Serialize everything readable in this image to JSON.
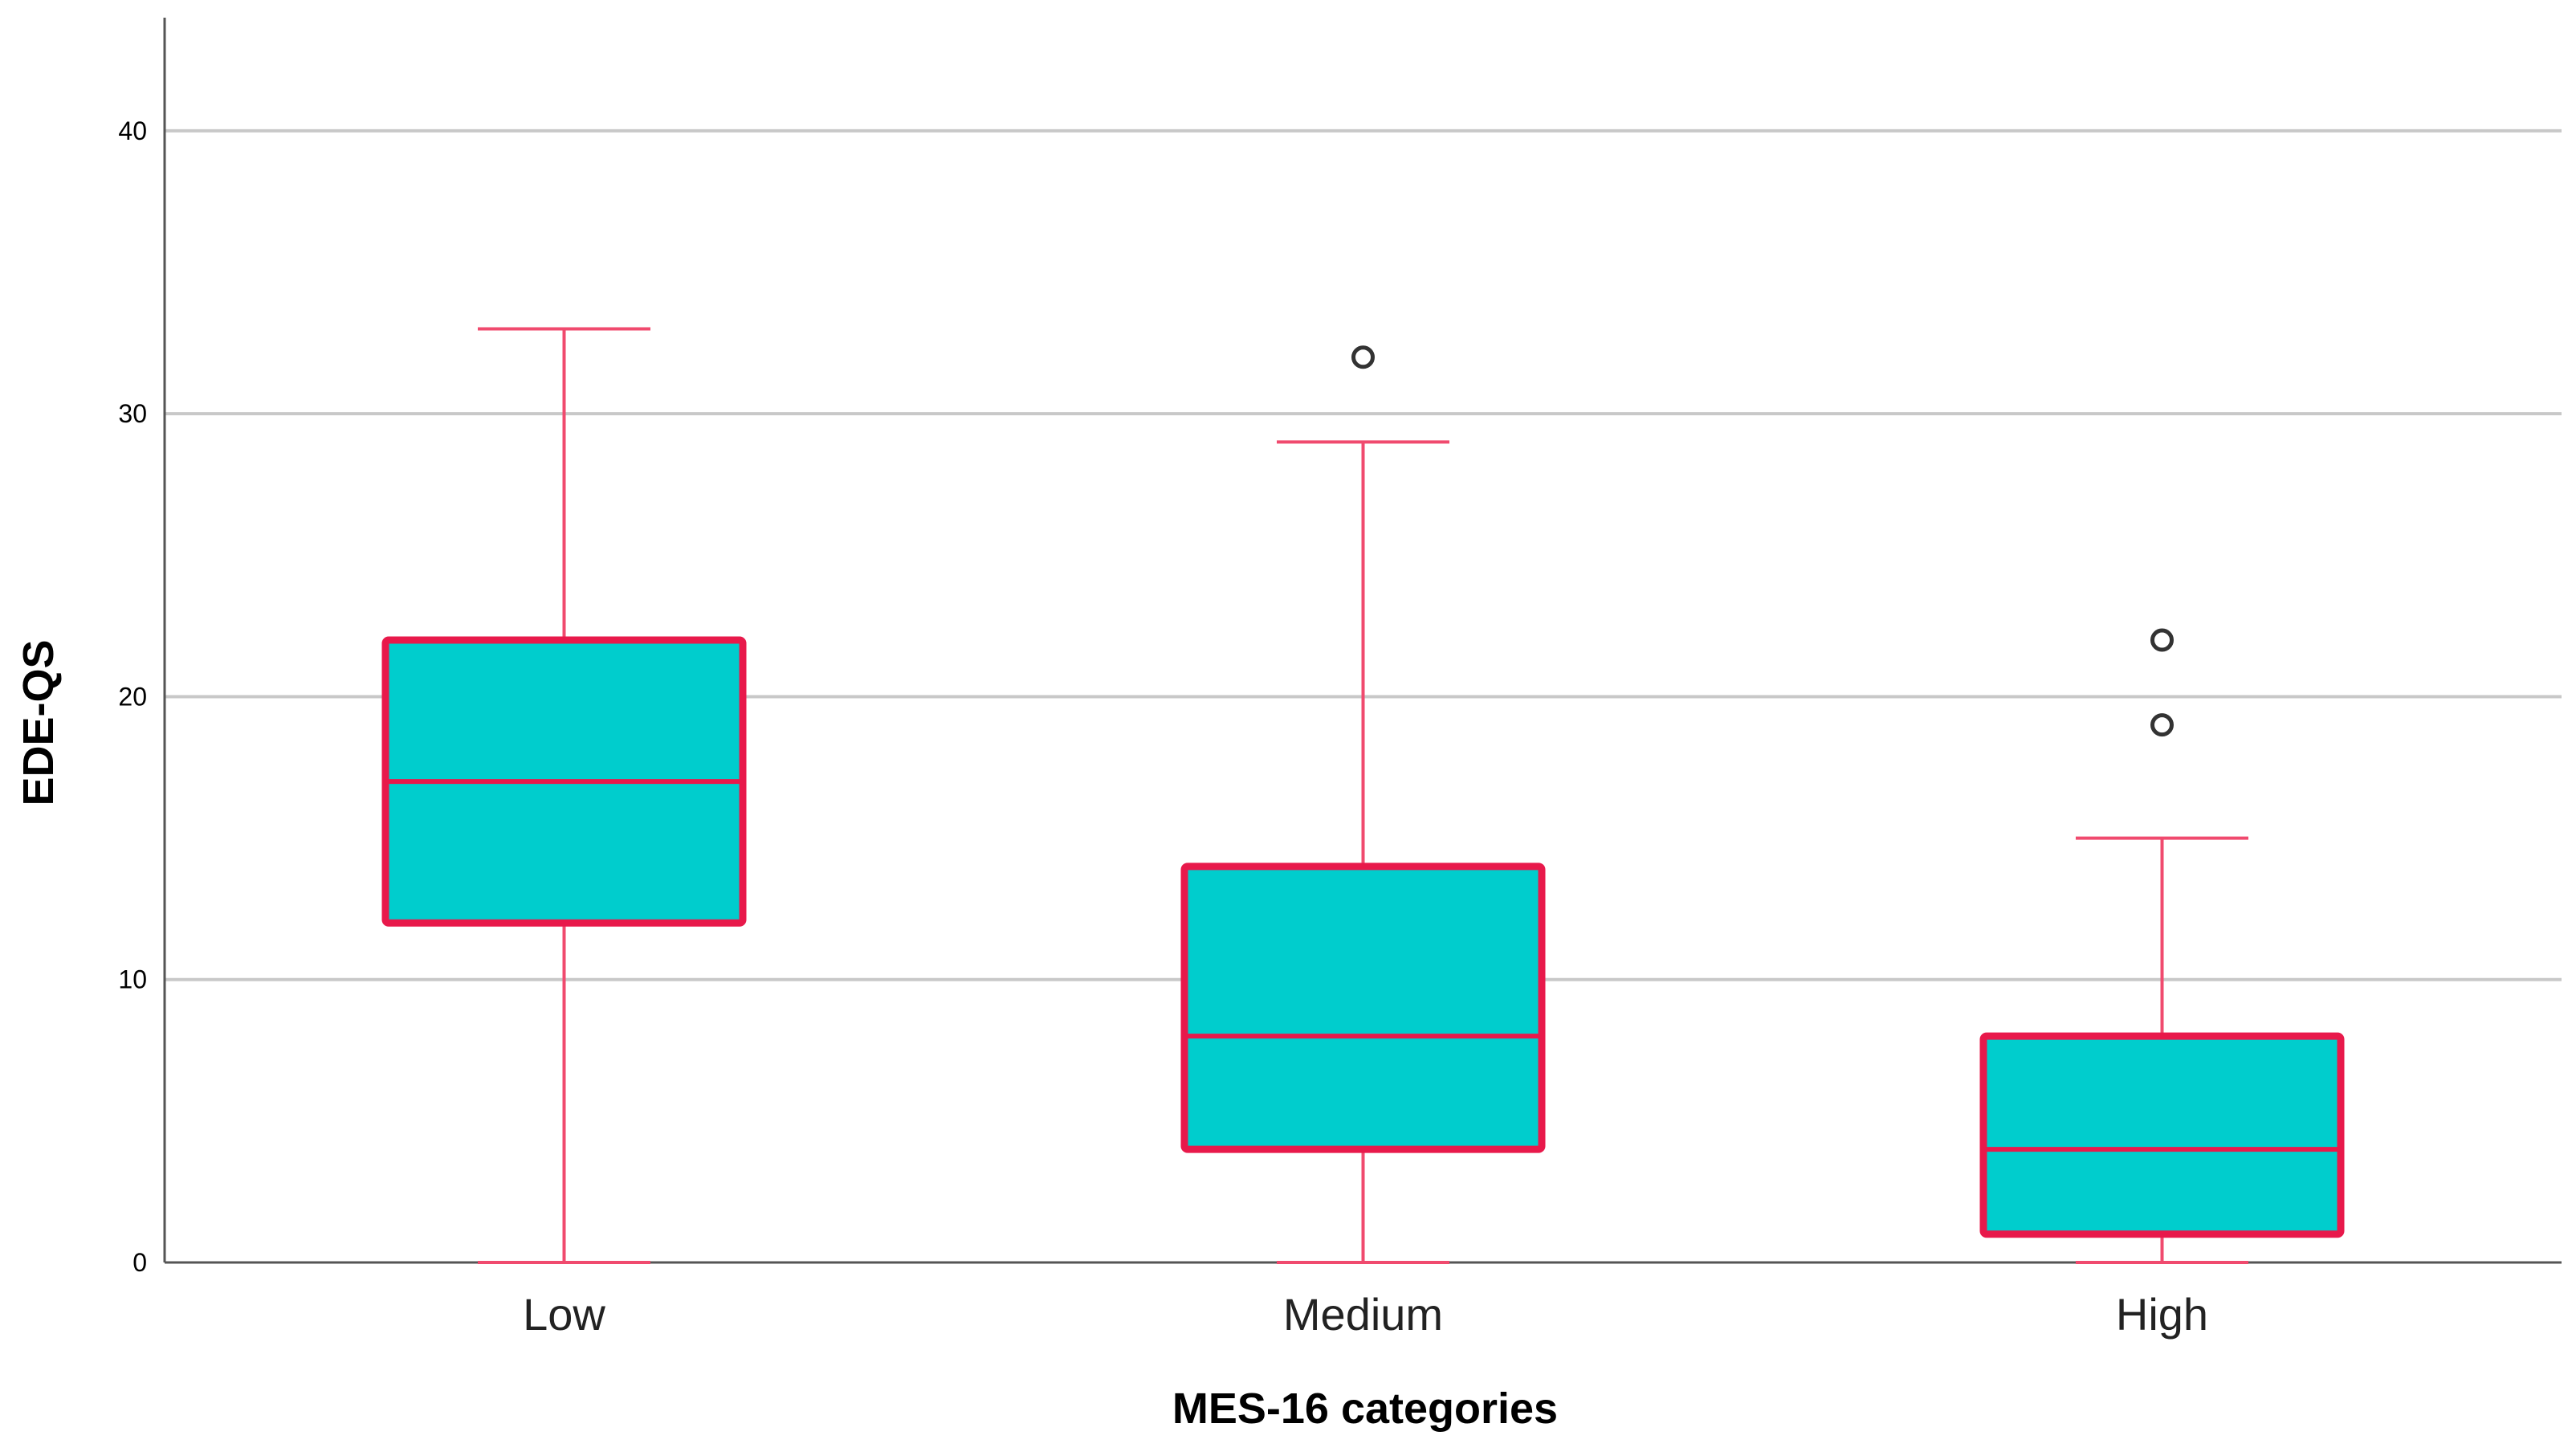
{
  "chart_data": {
    "type": "box",
    "title": "",
    "xlabel": "MES-16 categories",
    "ylabel": "EDE-QS",
    "ylim": [
      0,
      44
    ],
    "yticks": [
      0,
      10,
      20,
      30,
      40
    ],
    "grid": true,
    "categories": [
      "Low",
      "Medium",
      "High"
    ],
    "boxes": [
      {
        "category": "Low",
        "min": 0,
        "q1": 12,
        "median": 17,
        "q3": 22,
        "max": 33,
        "outliers": []
      },
      {
        "category": "Medium",
        "min": 0,
        "q1": 4,
        "median": 8,
        "q3": 14,
        "max": 29,
        "outliers": [
          32
        ]
      },
      {
        "category": "High",
        "min": 0,
        "q1": 1,
        "median": 4,
        "q3": 8,
        "max": 15,
        "outliers": [
          19,
          22
        ]
      }
    ],
    "colors": {
      "box_fill": "#00CDCD",
      "box_stroke": "#E8194B",
      "whisker": "#F04A6E",
      "grid": "#C8C8C8",
      "axis": "#555555",
      "outlier": "#333333"
    }
  }
}
